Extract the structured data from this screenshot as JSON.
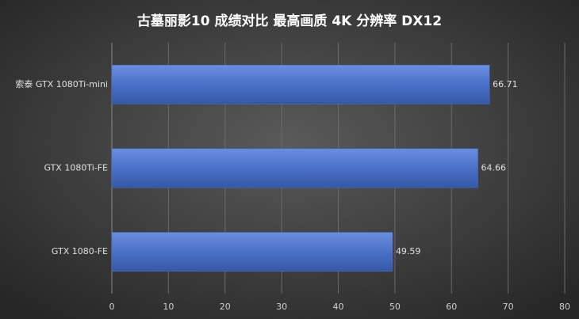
{
  "chart_data": {
    "type": "bar",
    "title": "古墓丽影10 成绩对比 最高画质 4K 分辨率 DX12",
    "categories": [
      "索泰 GTX 1080Ti-mini",
      "GTX 1080Ti-FE",
      "GTX 1080-FE"
    ],
    "values": [
      66.71,
      64.66,
      49.59
    ],
    "color": "#4a70c8",
    "xlim": [
      0,
      80
    ],
    "xticks": [
      0,
      10,
      20,
      30,
      40,
      50,
      60,
      70,
      80
    ],
    "grid": true
  }
}
